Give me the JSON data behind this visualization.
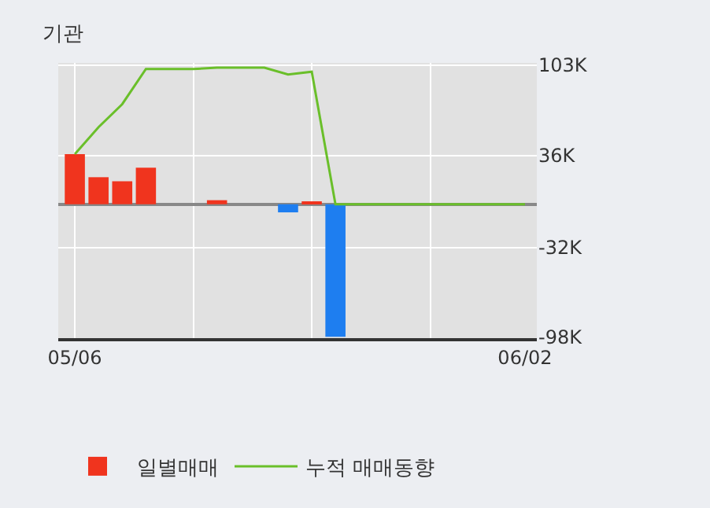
{
  "chart_data": {
    "type": "bar",
    "title": "기관",
    "categories": [
      "05/06",
      null,
      null,
      null,
      null,
      null,
      null,
      null,
      null,
      null,
      null,
      null,
      null,
      null,
      null,
      null,
      null,
      null,
      null,
      "06/02"
    ],
    "series": [
      {
        "name": "일별매매",
        "colors": [
          "#f0341e",
          "#f0341e",
          "#f0341e",
          "#f0341e",
          null,
          null,
          "#f0341e",
          null,
          null,
          "#1e7ef0",
          "#f0341e",
          "#1e7ef0",
          null,
          null,
          null,
          null,
          null,
          null,
          null,
          null
        ],
        "values": [
          37000,
          20000,
          17000,
          27000,
          null,
          null,
          3000,
          null,
          null,
          -6000,
          2000,
          -98000,
          null,
          null,
          null,
          null,
          null,
          null,
          null,
          null
        ]
      },
      {
        "name": "누적 매매동향",
        "type": "line",
        "color": "#6abf2a",
        "values": [
          37000,
          57000,
          74000,
          100000,
          100000,
          100000,
          101000,
          101000,
          101000,
          96000,
          98000,
          0,
          0,
          0,
          0,
          0,
          0,
          0,
          0,
          0
        ]
      }
    ],
    "ylim": [
      -99000,
      104500
    ],
    "yticks": [
      {
        "value": 103000,
        "label": "103K"
      },
      {
        "value": 36000,
        "label": "36K"
      },
      {
        "value": -32000,
        "label": "-32K"
      },
      {
        "value": -98000,
        "label": "-98K"
      }
    ],
    "grid": true,
    "legend": "bottom",
    "marker": "none",
    "line_style": "solid"
  }
}
